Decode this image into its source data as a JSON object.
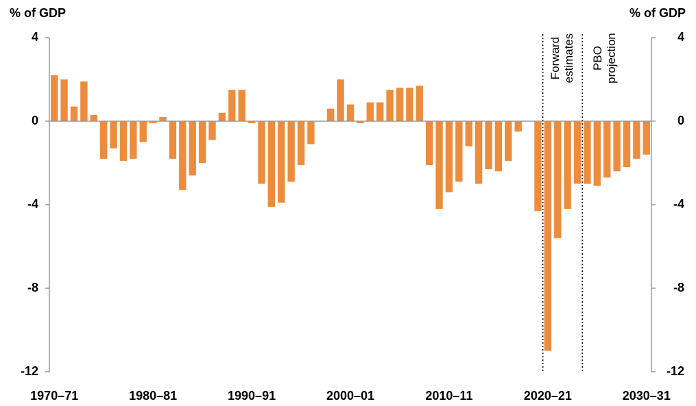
{
  "chart_data": {
    "type": "bar",
    "ylabel": "% of GDP",
    "y2label": "% of GDP",
    "annotations": [
      "Forward estimates",
      "PBO projection"
    ],
    "categories": [
      "1970–71",
      null,
      null,
      null,
      null,
      null,
      null,
      null,
      null,
      null,
      "1980–81",
      null,
      null,
      null,
      null,
      null,
      null,
      null,
      null,
      null,
      "1990–91",
      null,
      null,
      null,
      null,
      null,
      null,
      null,
      null,
      null,
      "2000–01",
      null,
      null,
      null,
      null,
      null,
      null,
      null,
      null,
      null,
      "2010–11",
      null,
      null,
      null,
      null,
      null,
      null,
      null,
      null,
      null,
      "2020–21",
      null,
      null,
      null,
      null,
      null,
      null,
      null,
      null,
      null,
      "2030–31"
    ],
    "values": [
      2.2,
      2.0,
      0.7,
      1.9,
      0.3,
      -1.8,
      -1.3,
      -1.9,
      -1.8,
      -1.0,
      -0.1,
      0.2,
      -1.8,
      -3.3,
      -2.6,
      -2.0,
      -0.9,
      0.4,
      1.5,
      1.5,
      -0.1,
      -3.0,
      -4.1,
      -3.9,
      -2.9,
      -2.1,
      -1.1,
      0.0,
      0.6,
      2.0,
      0.8,
      -0.1,
      0.9,
      0.9,
      1.5,
      1.6,
      1.6,
      1.7,
      -2.1,
      -4.2,
      -3.4,
      -2.9,
      -1.2,
      -3.0,
      -2.3,
      -2.4,
      -1.9,
      -0.5,
      0.0,
      -4.3,
      -11.0,
      -5.6,
      -4.2,
      -3.0,
      -3.0,
      -3.1,
      -2.7,
      -2.4,
      -2.2,
      -1.8,
      -1.6
    ],
    "color": "#ed8c3d",
    "ylim": [
      -12,
      4
    ],
    "yticks": [
      -12,
      -8,
      -4,
      0,
      4
    ],
    "y2lim": [
      -12,
      4
    ],
    "y2ticks": [
      -12,
      -8,
      -4,
      0,
      4
    ]
  }
}
